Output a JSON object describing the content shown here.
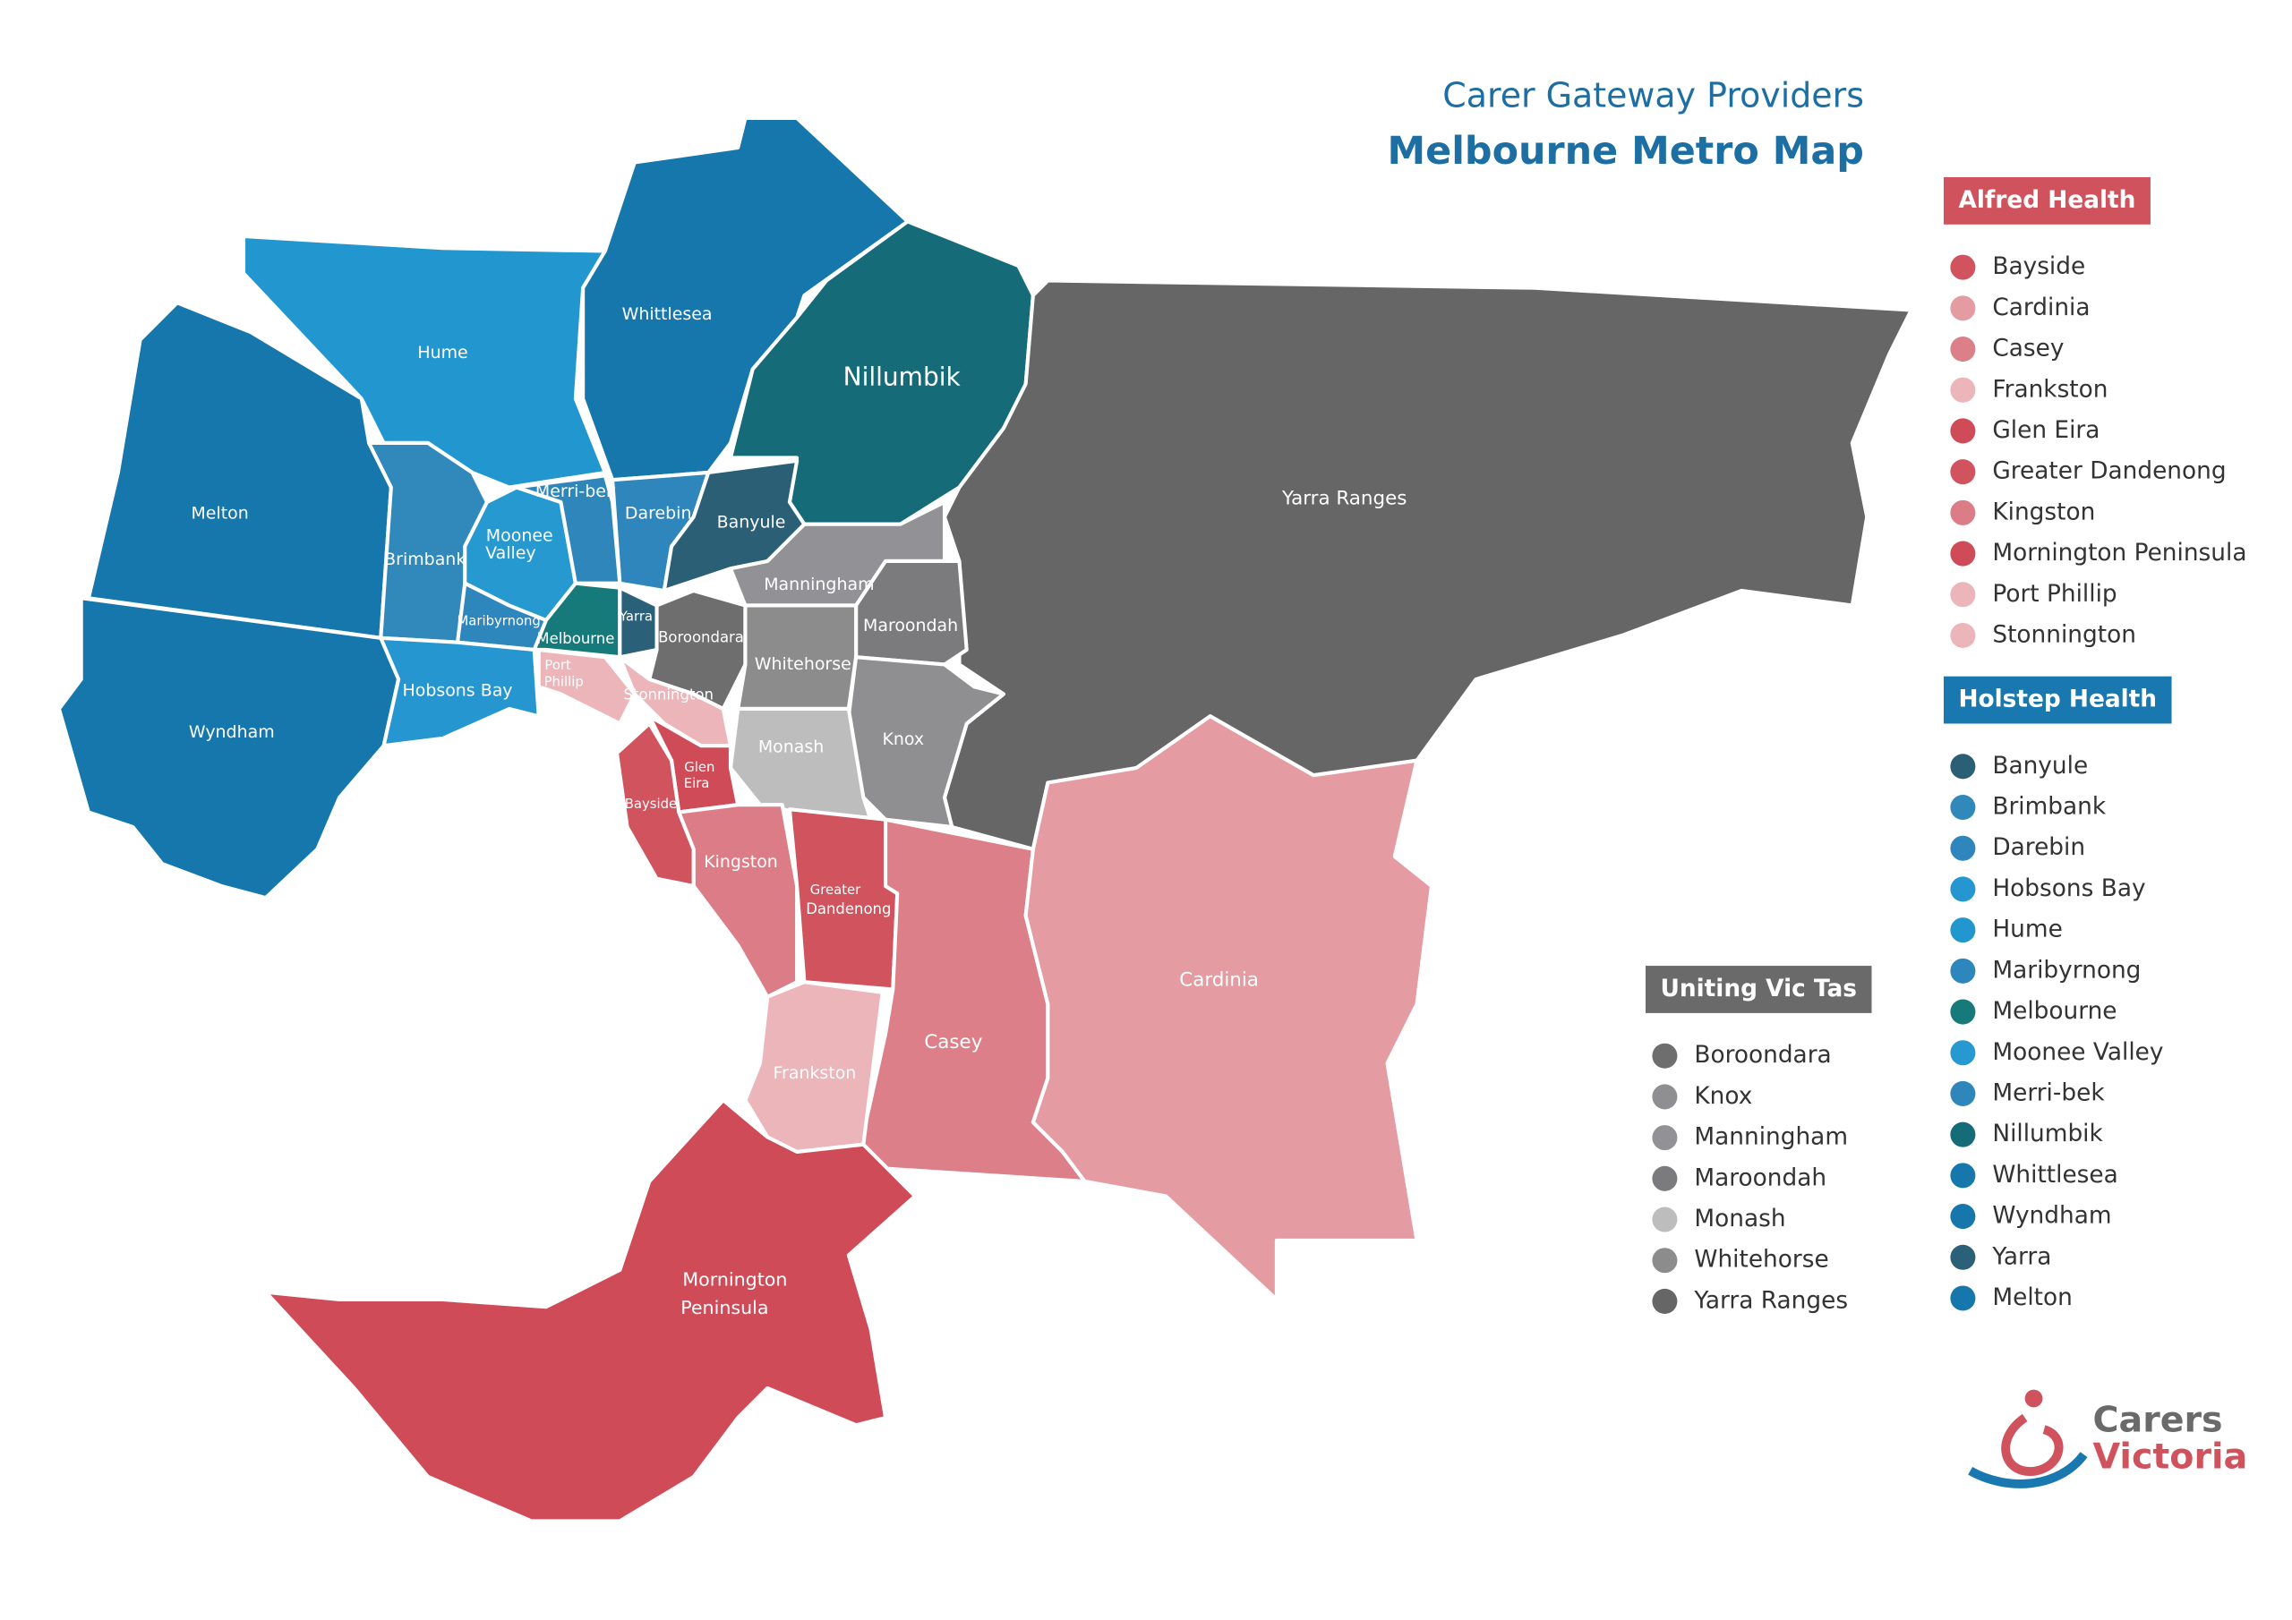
{
  "title": "Carer Gateway Providers",
  "subtitle": "Melbourne Metro Map",
  "legend": [
    {
      "provider": "Alfred Health",
      "color": "#d0525c",
      "areas": [
        {
          "name": "Bayside",
          "color": "#d0535d"
        },
        {
          "name": "Cardinia",
          "color": "#e49ba2"
        },
        {
          "name": "Casey",
          "color": "#dc7f88"
        },
        {
          "name": "Frankston",
          "color": "#ebb5ba"
        },
        {
          "name": "Glen Eira",
          "color": "#cf4b57"
        },
        {
          "name": "Greater Dandenong",
          "color": "#d0535d"
        },
        {
          "name": "Kingston",
          "color": "#db7c86"
        },
        {
          "name": "Mornington Peninsula",
          "color": "#cf4b57"
        },
        {
          "name": "Port Phillip",
          "color": "#ebb5ba"
        },
        {
          "name": "Stonnington",
          "color": "#ebb5ba"
        }
      ]
    },
    {
      "provider": "Holstep Health",
      "color": "#1a78b0",
      "areas": [
        {
          "name": "Banyule",
          "color": "#2b5f76"
        },
        {
          "name": "Brimbank",
          "color": "#3088bb"
        },
        {
          "name": "Darebin",
          "color": "#2e86bc"
        },
        {
          "name": "Hobsons Bay",
          "color": "#2596cf"
        },
        {
          "name": "Hume",
          "color": "#2297cf"
        },
        {
          "name": "Maribyrnong",
          "color": "#2d86bc"
        },
        {
          "name": "Melbourne",
          "color": "#167a7a"
        },
        {
          "name": "Moonee Valley",
          "color": "#2599d0"
        },
        {
          "name": "Merri-bek",
          "color": "#2f86bb"
        },
        {
          "name": "Nillumbik",
          "color": "#166b78"
        },
        {
          "name": "Whittlesea",
          "color": "#1677ad"
        },
        {
          "name": "Wyndham",
          "color": "#1677ad"
        },
        {
          "name": "Yarra",
          "color": "#2a6078"
        },
        {
          "name": "Melton",
          "color": "#1677ad"
        }
      ]
    },
    {
      "provider": "Uniting Vic Tas",
      "color": "#6a6a6a",
      "areas": [
        {
          "name": "Boroondara",
          "color": "#6e6e6e"
        },
        {
          "name": "Knox",
          "color": "#8f8f92"
        },
        {
          "name": "Manningham",
          "color": "#929296"
        },
        {
          "name": "Maroondah",
          "color": "#7b7b7d"
        },
        {
          "name": "Monash",
          "color": "#bdbdbd"
        },
        {
          "name": "Whitehorse",
          "color": "#8c8c8c"
        },
        {
          "name": "Yarra Ranges",
          "color": "#666666"
        }
      ]
    }
  ],
  "map_labels": [
    [
      "Hume"
    ],
    [
      "Whittlesea"
    ],
    [
      "Nillumbik"
    ],
    [
      "Melton"
    ],
    [
      "Merri-bek"
    ],
    [
      "Darebin"
    ],
    [
      "Banyule"
    ],
    [
      "Moonee",
      "Valley"
    ],
    [
      "Brimbank"
    ],
    [
      "Manningham"
    ],
    [
      "Maribyrnong"
    ],
    [
      "Yarra"
    ],
    [
      "Maroondah"
    ],
    [
      "Melbourne"
    ],
    [
      "Boroondara"
    ],
    [
      "Whitehorse"
    ],
    [
      "Port",
      "Phillip"
    ],
    [
      "Stonnington"
    ],
    [
      "Hobsons Bay"
    ],
    [
      "Monash"
    ],
    [
      "Knox"
    ],
    [
      "Wyndham"
    ],
    [
      "Glen",
      "Eira"
    ],
    [
      "Bayside"
    ],
    [
      "Kingston"
    ],
    [
      "Greater",
      "Dandenong"
    ],
    [
      "Yarra Ranges"
    ],
    [
      "Cardinia"
    ],
    [
      "Casey"
    ],
    [
      "Frankston"
    ],
    [
      "Mornington",
      "Peninsula"
    ]
  ],
  "logo": [
    "Carers",
    "Victoria"
  ]
}
